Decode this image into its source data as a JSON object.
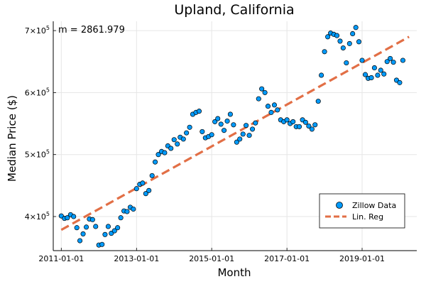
{
  "chart_data": {
    "type": "scatter",
    "title": "Upland, California",
    "xlabel": "Month",
    "ylabel": "Median Price ($)",
    "annotation": "m = 2861.979",
    "x_ticks": [
      "2011-01-01",
      "2013-01-01",
      "2015-01-01",
      "2017-01-01",
      "2019-01-01"
    ],
    "y_ticks": [
      {
        "value": 400000,
        "mantissa": "4",
        "base": "×10",
        "exp": "5"
      },
      {
        "value": 500000,
        "mantissa": "5",
        "base": "×10",
        "exp": "5"
      },
      {
        "value": 600000,
        "mantissa": "6",
        "base": "×10",
        "exp": "5"
      },
      {
        "value": 700000,
        "mantissa": "7",
        "base": "×10",
        "exp": "5"
      }
    ],
    "xlim": [
      "2010-10-15",
      "2020-06-15"
    ],
    "ylim": [
      345000,
      715000
    ],
    "grid": true,
    "legend_position": "bottom-right",
    "series": [
      {
        "name": "Zillow Data",
        "kind": "scatter",
        "color": "#009AFA",
        "points": [
          [
            "2011-01-01",
            401000
          ],
          [
            "2011-02-01",
            397000
          ],
          [
            "2011-03-01",
            398000
          ],
          [
            "2011-04-01",
            403000
          ],
          [
            "2011-05-01",
            400000
          ],
          [
            "2011-06-01",
            382000
          ],
          [
            "2011-07-01",
            361000
          ],
          [
            "2011-08-01",
            372000
          ],
          [
            "2011-09-01",
            383000
          ],
          [
            "2011-10-01",
            396000
          ],
          [
            "2011-11-01",
            395000
          ],
          [
            "2011-12-01",
            384000
          ],
          [
            "2012-01-01",
            354000
          ],
          [
            "2012-02-01",
            355000
          ],
          [
            "2012-03-01",
            371000
          ],
          [
            "2012-04-01",
            384000
          ],
          [
            "2012-05-01",
            373000
          ],
          [
            "2012-06-01",
            377000
          ],
          [
            "2012-07-01",
            382000
          ],
          [
            "2012-08-01",
            398000
          ],
          [
            "2012-09-01",
            409000
          ],
          [
            "2012-10-01",
            408000
          ],
          [
            "2012-11-01",
            415000
          ],
          [
            "2012-12-01",
            412000
          ],
          [
            "2013-01-01",
            445000
          ],
          [
            "2013-02-01",
            452000
          ],
          [
            "2013-03-01",
            454000
          ],
          [
            "2013-04-01",
            437000
          ],
          [
            "2013-05-01",
            442000
          ],
          [
            "2013-06-01",
            466000
          ],
          [
            "2013-07-01",
            488000
          ],
          [
            "2013-08-01",
            500000
          ],
          [
            "2013-09-01",
            505000
          ],
          [
            "2013-10-01",
            503000
          ],
          [
            "2013-11-01",
            514000
          ],
          [
            "2013-12-01",
            510000
          ],
          [
            "2014-01-01",
            524000
          ],
          [
            "2014-02-01",
            517000
          ],
          [
            "2014-03-01",
            528000
          ],
          [
            "2014-04-01",
            525000
          ],
          [
            "2014-05-01",
            535000
          ],
          [
            "2014-06-01",
            544000
          ],
          [
            "2014-07-01",
            565000
          ],
          [
            "2014-08-01",
            568000
          ],
          [
            "2014-09-01",
            570000
          ],
          [
            "2014-10-01",
            537000
          ],
          [
            "2014-11-01",
            527000
          ],
          [
            "2014-12-01",
            529000
          ],
          [
            "2015-01-01",
            532000
          ],
          [
            "2015-02-01",
            553000
          ],
          [
            "2015-03-01",
            558000
          ],
          [
            "2015-04-01",
            549000
          ],
          [
            "2015-05-01",
            539000
          ],
          [
            "2015-06-01",
            554000
          ],
          [
            "2015-07-01",
            565000
          ],
          [
            "2015-08-01",
            548000
          ],
          [
            "2015-09-01",
            520000
          ],
          [
            "2015-10-01",
            525000
          ],
          [
            "2015-11-01",
            533000
          ],
          [
            "2015-12-01",
            547000
          ],
          [
            "2016-01-01",
            531000
          ],
          [
            "2016-02-01",
            541000
          ],
          [
            "2016-03-01",
            551000
          ],
          [
            "2016-04-01",
            590000
          ],
          [
            "2016-05-01",
            606000
          ],
          [
            "2016-06-01",
            600000
          ],
          [
            "2016-07-01",
            578000
          ],
          [
            "2016-08-01",
            568000
          ],
          [
            "2016-09-01",
            580000
          ],
          [
            "2016-10-01",
            572000
          ],
          [
            "2016-11-01",
            556000
          ],
          [
            "2016-12-01",
            553000
          ],
          [
            "2017-01-01",
            556000
          ],
          [
            "2017-02-01",
            550000
          ],
          [
            "2017-03-01",
            553000
          ],
          [
            "2017-04-01",
            545000
          ],
          [
            "2017-05-01",
            545000
          ],
          [
            "2017-06-01",
            556000
          ],
          [
            "2017-07-01",
            552000
          ],
          [
            "2017-08-01",
            546000
          ],
          [
            "2017-09-01",
            541000
          ],
          [
            "2017-10-01",
            548000
          ],
          [
            "2017-11-01",
            586000
          ],
          [
            "2017-12-01",
            628000
          ],
          [
            "2018-01-01",
            666000
          ],
          [
            "2018-02-01",
            690000
          ],
          [
            "2018-03-01",
            696000
          ],
          [
            "2018-04-01",
            694000
          ],
          [
            "2018-05-01",
            692000
          ],
          [
            "2018-06-01",
            683000
          ],
          [
            "2018-07-01",
            672000
          ],
          [
            "2018-08-01",
            648000
          ],
          [
            "2018-09-01",
            679000
          ],
          [
            "2018-10-01",
            695000
          ],
          [
            "2018-11-01",
            705000
          ],
          [
            "2018-12-01",
            682000
          ],
          [
            "2019-01-01",
            652000
          ],
          [
            "2019-02-01",
            629000
          ],
          [
            "2019-03-01",
            623000
          ],
          [
            "2019-04-01",
            624000
          ],
          [
            "2019-05-01",
            640000
          ],
          [
            "2019-06-01",
            628000
          ],
          [
            "2019-07-01",
            636000
          ],
          [
            "2019-08-01",
            630000
          ],
          [
            "2019-09-01",
            650000
          ],
          [
            "2019-10-01",
            655000
          ],
          [
            "2019-11-01",
            649000
          ],
          [
            "2019-12-01",
            620000
          ],
          [
            "2020-01-01",
            616000
          ],
          [
            "2020-02-01",
            652000
          ]
        ]
      },
      {
        "name": "Lin. Reg",
        "kind": "line",
        "style": "dashed",
        "color": "#E26F46",
        "points": [
          [
            "2011-01-01",
            378500
          ],
          [
            "2020-04-01",
            690000
          ]
        ]
      }
    ]
  }
}
